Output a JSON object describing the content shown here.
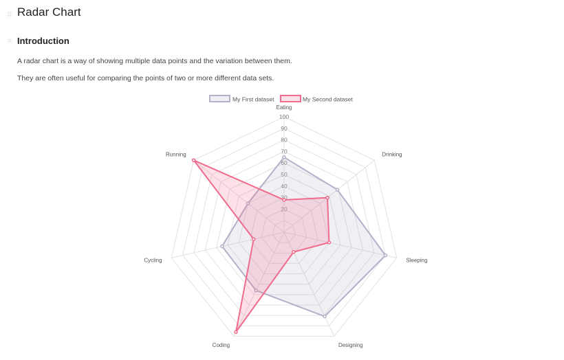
{
  "page": {
    "anchor_glyph": "#",
    "title": "Radar Chart",
    "section_heading": "Introduction",
    "paragraphs": [
      "A radar chart is a way of showing multiple data points and the variation between them.",
      "They are often useful for comparing the points of two or more different data sets."
    ]
  },
  "chart_data": {
    "type": "radar",
    "labels": [
      "Eating",
      "Drinking",
      "Sleeping",
      "Designing",
      "Coding",
      "Cycling",
      "Running"
    ],
    "series": [
      {
        "name": "My First dataset",
        "values": [
          65,
          59,
          90,
          81,
          56,
          55,
          40
        ],
        "border_color": "#b3b0c8",
        "fill_color": "rgba(179,176,200,0.2)"
      },
      {
        "name": "My Second dataset",
        "values": [
          28,
          48,
          40,
          19,
          96,
          27,
          100
        ],
        "border_color": "#f06b8c",
        "fill_color": "rgba(240,107,140,0.2)"
      }
    ],
    "r_range": [
      0,
      100
    ],
    "r_ticks": [
      20,
      30,
      40,
      50,
      60,
      70,
      80,
      90,
      100
    ],
    "grid": true,
    "legend_position": "top"
  }
}
